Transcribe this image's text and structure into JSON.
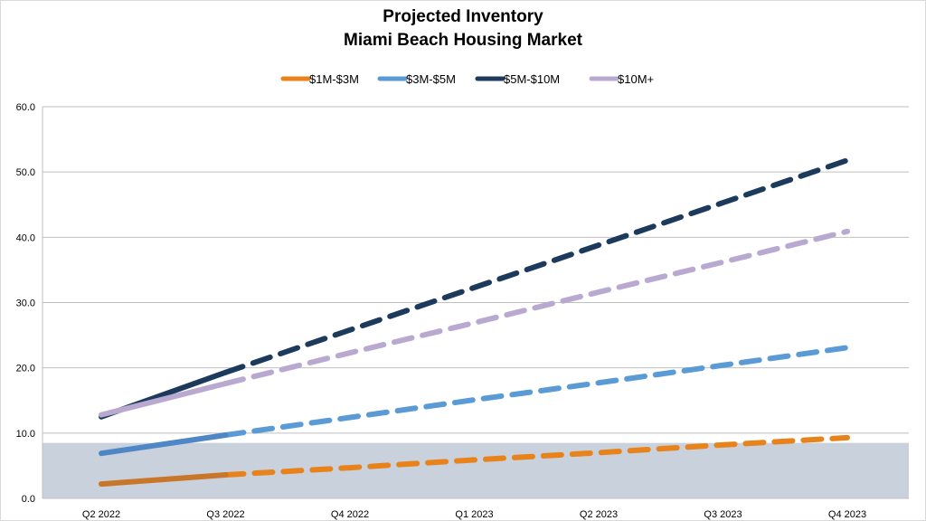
{
  "chart_data": {
    "type": "line",
    "title": [
      "Projected Inventory",
      "Miami Beach Housing Market"
    ],
    "categories": [
      "Q2 2022",
      "Q3 2022",
      "Q4 2022",
      "Q1 2023",
      "Q2 2023",
      "Q3 2023",
      "Q4 2023"
    ],
    "ylim": [
      0,
      60
    ],
    "yticks": [
      "0.0",
      "10.0",
      "20.0",
      "30.0",
      "40.0",
      "50.0",
      "60.0"
    ],
    "ytick_values": [
      0,
      10,
      20,
      30,
      40,
      50,
      60
    ],
    "grid": true,
    "legend_position": "top",
    "actual_through_category_index": 1,
    "shaded_band": {
      "from": 0,
      "to": 8.5,
      "color": "#c8d1dc"
    },
    "series": [
      {
        "name": "$1M-$3M",
        "color": "#e8821a",
        "actual_color": "#c8762a",
        "values": [
          2.2,
          3.6,
          4.7,
          5.9,
          7.0,
          8.2,
          9.3
        ]
      },
      {
        "name": "$3M-$5M",
        "color": "#5b9bd5",
        "actual_color": "#4f86c6",
        "values": [
          6.9,
          9.7,
          12.4,
          15.1,
          17.7,
          20.4,
          23.1
        ]
      },
      {
        "name": "$5M-$10M",
        "color": "#1c3a5c",
        "actual_color": "#1c3a5c",
        "values": [
          12.5,
          19.3,
          25.8,
          32.3,
          38.8,
          45.3,
          51.8
        ]
      },
      {
        "name": "$10M+",
        "color": "#b9a9d0",
        "actual_color": "#b9a9d0",
        "values": [
          12.8,
          17.6,
          22.3,
          26.9,
          31.6,
          36.2,
          40.9
        ]
      }
    ]
  }
}
